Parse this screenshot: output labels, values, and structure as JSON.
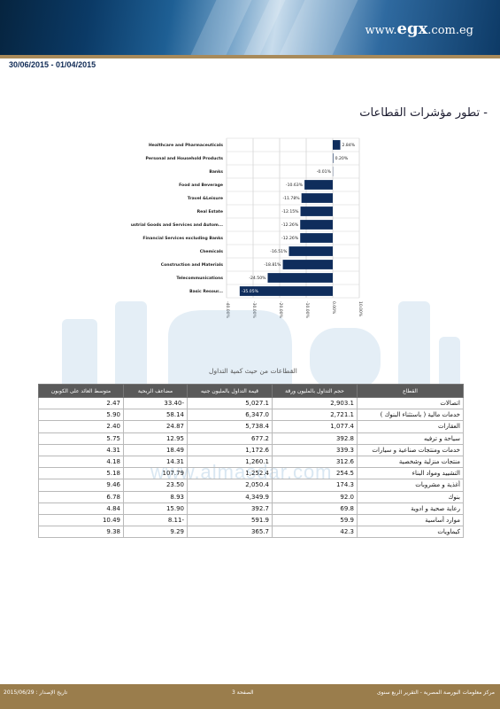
{
  "header": {
    "logo_prefix": "www.",
    "logo_brand": "egx",
    "logo_suffix": ".com.eg",
    "period": "30/06/2015 - 01/04/2015"
  },
  "section_title": "- تطور مؤشرات القطاعات",
  "chart_data": {
    "type": "bar",
    "orientation": "horizontal",
    "categories": [
      "Healthcare and Pharmaceuticals",
      "Personal and Household Products",
      "Banks",
      "Food and Beverage",
      "Travel &Leisure",
      "Real Estate",
      "Industrial Goods and Services and Autom...",
      "Financial Services excluding Banks",
      "Chemicals",
      "Construction and Materials",
      "Telecommunications",
      "Basic Resour..."
    ],
    "values": [
      2.84,
      0.2,
      -0.01,
      -10.63,
      -11.78,
      -12.15,
      -12.26,
      -12.26,
      -16.51,
      -18.81,
      -24.5,
      -35.05
    ],
    "value_labels": [
      "2.84%",
      "0.20%",
      "-0.01%",
      "-10.63%",
      "-11.78%",
      "-12.15%",
      "-12.26%",
      "-12.26%",
      "-16.51%",
      "-18.81%",
      "-24.50%",
      "-35.05%"
    ],
    "tick_labels": [
      "-40.00%",
      "-30.00%",
      "-20.00%",
      "-10.00%",
      "0.00%",
      "10.00%"
    ],
    "xlim": [
      -40,
      10
    ],
    "grid": true,
    "bar_color": "#0f2d5c",
    "xlabel": "",
    "ylabel": ""
  },
  "watermark": {
    "url": "www.almasdar.com"
  },
  "table": {
    "caption": "القطاعات من حيث كمية التداول",
    "headers": [
      "القطاع",
      "حجم التداول بالمليون ورقة",
      "قيمة التداول بالمليون جنيه",
      "مضاعف الربحية",
      "متوسط العائد على الكوبون"
    ],
    "rows": [
      [
        "اتصالات",
        "2,903.1",
        "5,027.1",
        "33.40-",
        "2.47"
      ],
      [
        "خدمات مالية ( باستثناء البنوك )",
        "2,721.1",
        "6,347.0",
        "58.14",
        "5.90"
      ],
      [
        "العقارات",
        "1,077.4",
        "5,738.4",
        "24.87",
        "2.40"
      ],
      [
        "سياحة و ترفيه",
        "392.8",
        "677.2",
        "12.95",
        "5.75"
      ],
      [
        "خدمات ومنتجات صناعية و سيارات",
        "339.3",
        "1,172.6",
        "18.49",
        "4.31"
      ],
      [
        "منتجات منزلية وشخصية",
        "312.6",
        "1,260.1",
        "14.31",
        "4.18"
      ],
      [
        "التشييد ومواد البناء",
        "254.5",
        "1,252.4",
        "107.79",
        "5.18"
      ],
      [
        "أغذية و مشروبات",
        "174.3",
        "2,050.4",
        "23.50",
        "9.46"
      ],
      [
        "بنوك",
        "92.0",
        "4,349.9",
        "8.93",
        "6.78"
      ],
      [
        "رعاية صحية و ادوية",
        "69.8",
        "392.7",
        "15.90",
        "4.84"
      ],
      [
        "موارد أساسية",
        "59.9",
        "591.9",
        "8.11-",
        "10.49"
      ],
      [
        "كيماويات",
        "42.3",
        "365.7",
        "9.29",
        "9.38"
      ]
    ]
  },
  "footer": {
    "issue_date": "تاريخ الإصدار : 2015/06/29",
    "page": "الصفحة 3",
    "source": "مركز معلومات البورصة المصرية - التقرير الربع سنوى"
  },
  "colors": {
    "banner_dark": "#0b3a66",
    "gold": "#a88a5a",
    "footer": "#9a7d4c",
    "table_header": "#5a5a5a"
  }
}
